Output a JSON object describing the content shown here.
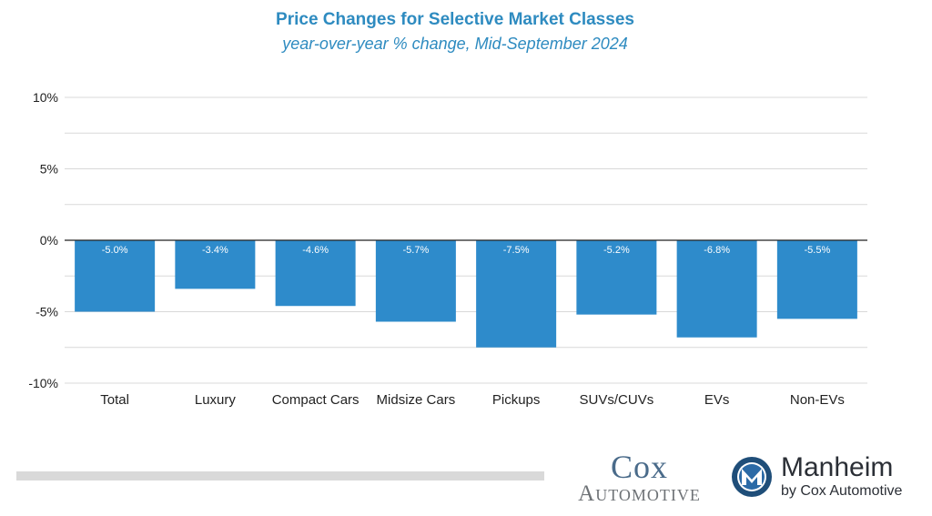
{
  "chart_data": {
    "type": "bar",
    "title": "Price Changes for Selective Market Classes",
    "subtitle": "year-over-year % change, Mid-September 2024",
    "categories": [
      "Total",
      "Luxury",
      "Compact Cars",
      "Midsize Cars",
      "Pickups",
      "SUVs/CUVs",
      "EVs",
      "Non-EVs"
    ],
    "values": [
      -5.0,
      -3.4,
      -4.6,
      -5.7,
      -7.5,
      -5.2,
      -6.8,
      -5.5
    ],
    "data_labels": [
      "-5.0%",
      "-3.4%",
      "-4.6%",
      "-5.7%",
      "-7.5%",
      "-5.2%",
      "-6.8%",
      "-5.5%"
    ],
    "ylim": [
      -10,
      10
    ],
    "y_ticks": [
      10,
      5,
      0,
      -5,
      -10
    ],
    "y_tick_labels": [
      "10%",
      "5%",
      "0%",
      "-5%",
      "-10%"
    ],
    "grid": true,
    "xlabel": "",
    "ylabel": "",
    "bar_color": "#2e8bcb",
    "title_color": "#2e8bc0"
  },
  "logos": {
    "cox_line1": "Cox",
    "cox_line2": "Automotive",
    "manheim_name": "Manheim",
    "manheim_sub": "by Cox Automotive"
  }
}
